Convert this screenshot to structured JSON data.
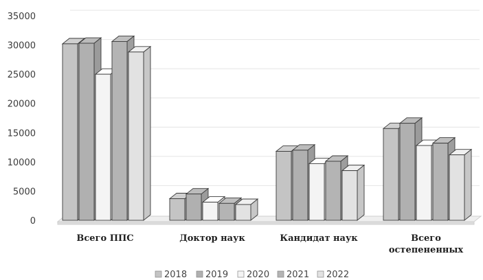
{
  "chart_data": {
    "type": "bar",
    "style": "3d-clustered-column",
    "categories": [
      "Всего ППС",
      "Доктор наук",
      "Кандидат наук",
      "Всего остепененных"
    ],
    "category_lines": [
      [
        "Всего ППС"
      ],
      [
        "Доктор наук"
      ],
      [
        "Кандидат наук"
      ],
      [
        "Всего",
        "остепененных"
      ]
    ],
    "series": [
      {
        "name": "2018",
        "values": [
          30200,
          3700,
          11800,
          15700
        ],
        "color": "#c4c4c4"
      },
      {
        "name": "2019",
        "values": [
          30300,
          4500,
          12000,
          16600
        ],
        "color": "#b0b0b0"
      },
      {
        "name": "2020",
        "values": [
          25000,
          3100,
          9700,
          12800
        ],
        "color": "#f4f4f4"
      },
      {
        "name": "2021",
        "values": [
          30600,
          2900,
          10100,
          13200
        ],
        "color": "#b4b4b4"
      },
      {
        "name": "2022",
        "values": [
          28800,
          2700,
          8500,
          11200
        ],
        "color": "#e2e2e2"
      }
    ],
    "yticks": [
      0,
      5000,
      10000,
      15000,
      20000,
      25000,
      30000,
      35000
    ],
    "ylim": [
      0,
      35000
    ],
    "grid": true,
    "legend_position": "bottom"
  }
}
